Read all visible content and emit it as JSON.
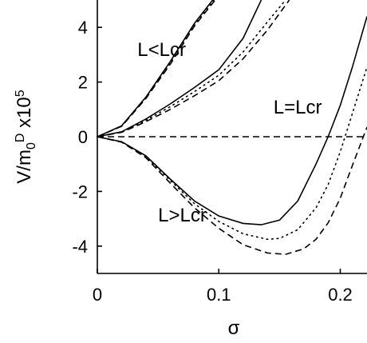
{
  "chart_data": {
    "type": "line",
    "xlabel": "σ",
    "ylabel": {
      "base": "V/m",
      "sub": "0",
      "sup1": "D",
      "mid": " x10",
      "sup2": "5"
    },
    "xlim": [
      0,
      0.222
    ],
    "ylim": [
      -5,
      5
    ],
    "xticks": [
      0,
      0.1,
      0.2
    ],
    "xtick_labels": [
      "0",
      "0.1",
      "0.2"
    ],
    "yticks": [
      -4,
      -2,
      0,
      2,
      4
    ],
    "ytick_labels": [
      "-4",
      "-2",
      "0",
      "2",
      "4"
    ],
    "grid": false,
    "annotations": [
      {
        "text": "L<Lcr",
        "x": 0.033,
        "y": 2.95
      },
      {
        "text": "L=Lcr",
        "x": 0.145,
        "y": 0.85
      },
      {
        "text": "L>Lcr",
        "x": 0.05,
        "y": -3.1
      }
    ],
    "series": [
      {
        "group": "L<Lcr",
        "style": "solid",
        "x": [
          0,
          0.02,
          0.04,
          0.06,
          0.08,
          0.095
        ],
        "y": [
          0,
          0.4,
          1.45,
          2.75,
          4.15,
          5.0
        ]
      },
      {
        "group": "L<Lcr",
        "style": "dashed",
        "x": [
          0,
          0.02,
          0.04,
          0.06,
          0.08,
          0.097
        ],
        "y": [
          0,
          0.38,
          1.4,
          2.65,
          4.05,
          5.0
        ]
      },
      {
        "group": "L<Lcr",
        "style": "dotted",
        "x": [
          0,
          0.02,
          0.04,
          0.06,
          0.08,
          0.096
        ],
        "y": [
          0,
          0.39,
          1.42,
          2.7,
          4.1,
          5.0
        ]
      },
      {
        "group": "L=Lcr",
        "style": "solid",
        "x": [
          0,
          0.02,
          0.04,
          0.06,
          0.08,
          0.1,
          0.12,
          0.135
        ],
        "y": [
          0,
          0.18,
          0.65,
          1.2,
          1.8,
          2.45,
          3.6,
          5.0
        ]
      },
      {
        "group": "L=Lcr",
        "style": "dotted",
        "x": [
          0,
          0.02,
          0.04,
          0.06,
          0.08,
          0.1,
          0.12,
          0.14,
          0.155
        ],
        "y": [
          0,
          0.17,
          0.6,
          1.1,
          1.65,
          2.25,
          3.1,
          4.2,
          5.0
        ]
      },
      {
        "group": "L=Lcr",
        "style": "dashed",
        "x": [
          0,
          0.02,
          0.04,
          0.06,
          0.08,
          0.1,
          0.12,
          0.14,
          0.158
        ],
        "y": [
          0,
          0.16,
          0.55,
          1.0,
          1.5,
          2.05,
          2.85,
          3.9,
          5.0
        ]
      },
      {
        "group": "L>Lcr",
        "style": "solid",
        "x": [
          0,
          0.02,
          0.04,
          0.06,
          0.08,
          0.1,
          0.12,
          0.135,
          0.15,
          0.165,
          0.18,
          0.19,
          0.2,
          0.21,
          0.222
        ],
        "y": [
          0,
          -0.18,
          -0.7,
          -1.55,
          -2.35,
          -2.9,
          -3.17,
          -3.22,
          -3.05,
          -2.35,
          -1.0,
          0.0,
          1.15,
          2.55,
          4.4
        ]
      },
      {
        "group": "L>Lcr",
        "style": "dotted",
        "x": [
          0,
          0.02,
          0.04,
          0.06,
          0.08,
          0.1,
          0.12,
          0.14,
          0.15,
          0.165,
          0.18,
          0.19,
          0.2,
          0.21,
          0.222
        ],
        "y": [
          0,
          -0.19,
          -0.73,
          -1.6,
          -2.45,
          -3.1,
          -3.55,
          -3.75,
          -3.72,
          -3.4,
          -2.6,
          -1.75,
          -0.55,
          0.85,
          2.55
        ]
      },
      {
        "group": "L>Lcr",
        "style": "dashed",
        "x": [
          0,
          0.02,
          0.04,
          0.06,
          0.08,
          0.1,
          0.12,
          0.14,
          0.155,
          0.17,
          0.18,
          0.19,
          0.2,
          0.21,
          0.222
        ],
        "y": [
          0,
          -0.2,
          -0.77,
          -1.7,
          -2.6,
          -3.35,
          -3.95,
          -4.25,
          -4.3,
          -4.1,
          -3.75,
          -3.15,
          -2.25,
          -1.05,
          0.35
        ]
      },
      {
        "group": "reference",
        "style": "dashed",
        "x": [
          0,
          0.222
        ],
        "y": [
          0,
          0
        ]
      }
    ]
  }
}
